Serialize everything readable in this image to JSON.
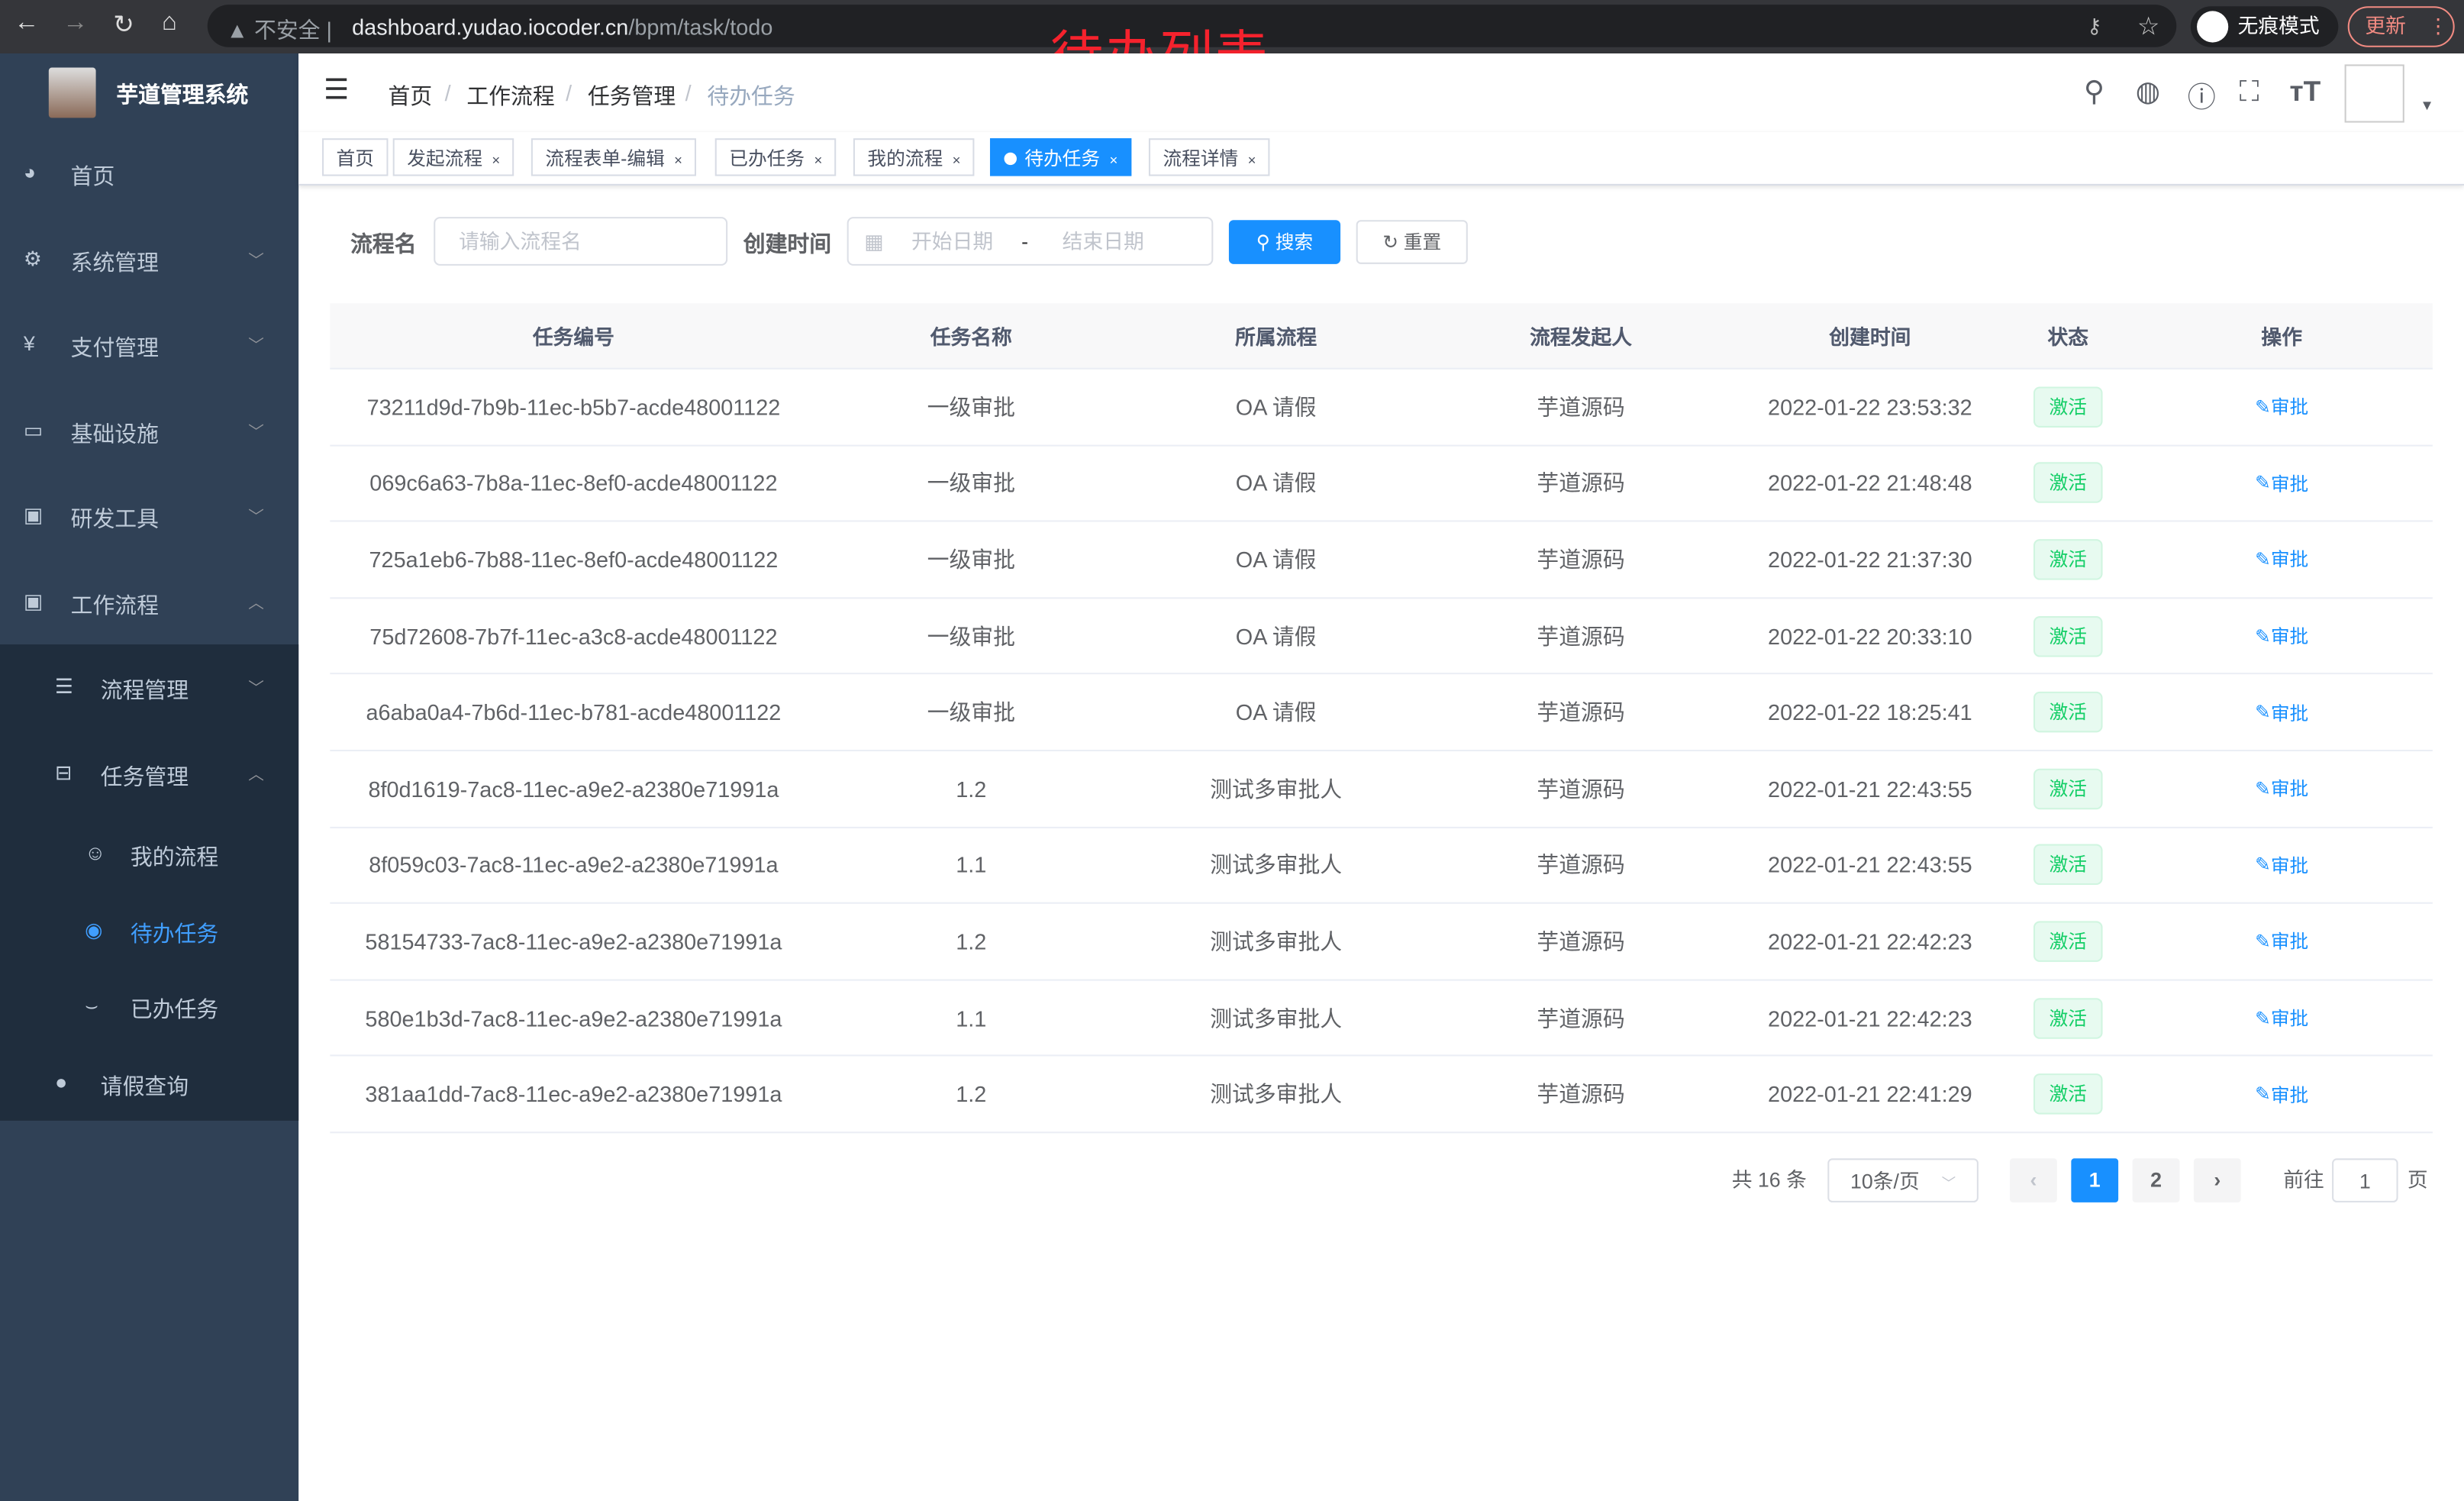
{
  "browser": {
    "insecure_label": "不安全",
    "url_host": "dashboard.yudao.iocoder.cn",
    "url_path": "/bpm/task/todo",
    "incognito_label": "无痕模式",
    "update_label": "更新"
  },
  "annotation": "待办列表",
  "sidebar": {
    "app_title": "芋道管理系统",
    "items": [
      {
        "label": "首页",
        "icon": "dashboard-icon"
      },
      {
        "label": "系统管理",
        "icon": "gear-icon"
      },
      {
        "label": "支付管理",
        "icon": "yen-icon"
      },
      {
        "label": "基础设施",
        "icon": "monitor-icon"
      },
      {
        "label": "研发工具",
        "icon": "toolbox-icon"
      },
      {
        "label": "工作流程",
        "icon": "toolbox-icon"
      },
      {
        "label": "流程管理",
        "icon": "list-icon"
      },
      {
        "label": "任务管理",
        "icon": "task-icon"
      },
      {
        "label": "我的流程",
        "icon": "user-icon"
      },
      {
        "label": "待办任务",
        "icon": "eye-icon"
      },
      {
        "label": "已办任务",
        "icon": "eye-closed-icon"
      },
      {
        "label": "请假查询",
        "icon": "person-icon"
      }
    ]
  },
  "breadcrumb": [
    "首页",
    "工作流程",
    "任务管理",
    "待办任务"
  ],
  "tags": [
    "首页",
    "发起流程",
    "流程表单-编辑",
    "已办任务",
    "我的流程",
    "待办任务",
    "流程详情"
  ],
  "form": {
    "name_label": "流程名",
    "name_placeholder": "请输入流程名",
    "time_label": "创建时间",
    "start_placeholder": "开始日期",
    "range_sep": "-",
    "end_placeholder": "结束日期",
    "search": "搜索",
    "reset": "重置"
  },
  "table": {
    "headers": [
      "任务编号",
      "任务名称",
      "所属流程",
      "流程发起人",
      "创建时间",
      "状态",
      "操作"
    ],
    "rows": [
      [
        "73211d9d-7b9b-11ec-b5b7-acde48001122",
        "一级审批",
        "OA 请假",
        "芋道源码",
        "2022-01-22 23:53:32",
        "激活",
        "审批"
      ],
      [
        "069c6a63-7b8a-11ec-8ef0-acde48001122",
        "一级审批",
        "OA 请假",
        "芋道源码",
        "2022-01-22 21:48:48",
        "激活",
        "审批"
      ],
      [
        "725a1eb6-7b88-11ec-8ef0-acde48001122",
        "一级审批",
        "OA 请假",
        "芋道源码",
        "2022-01-22 21:37:30",
        "激活",
        "审批"
      ],
      [
        "75d72608-7b7f-11ec-a3c8-acde48001122",
        "一级审批",
        "OA 请假",
        "芋道源码",
        "2022-01-22 20:33:10",
        "激活",
        "审批"
      ],
      [
        "a6aba0a4-7b6d-11ec-b781-acde48001122",
        "一级审批",
        "OA 请假",
        "芋道源码",
        "2022-01-22 18:25:41",
        "激活",
        "审批"
      ],
      [
        "8f0d1619-7ac8-11ec-a9e2-a2380e71991a",
        "1.2",
        "测试多审批人",
        "芋道源码",
        "2022-01-21 22:43:55",
        "激活",
        "审批"
      ],
      [
        "8f059c03-7ac8-11ec-a9e2-a2380e71991a",
        "1.1",
        "测试多审批人",
        "芋道源码",
        "2022-01-21 22:43:55",
        "激活",
        "审批"
      ],
      [
        "58154733-7ac8-11ec-a9e2-a2380e71991a",
        "1.2",
        "测试多审批人",
        "芋道源码",
        "2022-01-21 22:42:23",
        "激活",
        "审批"
      ],
      [
        "580e1b3d-7ac8-11ec-a9e2-a2380e71991a",
        "1.1",
        "测试多审批人",
        "芋道源码",
        "2022-01-21 22:42:23",
        "激活",
        "审批"
      ],
      [
        "381aa1dd-7ac8-11ec-a9e2-a2380e71991a",
        "1.2",
        "测试多审批人",
        "芋道源码",
        "2022-01-21 22:41:29",
        "激活",
        "审批"
      ]
    ]
  },
  "pagination": {
    "total": "共 16 条",
    "page_size": "10条/页",
    "pages": [
      "1",
      "2"
    ],
    "current": "1",
    "goto_label": "前往",
    "goto_value": "1",
    "page_suffix": "页"
  }
}
